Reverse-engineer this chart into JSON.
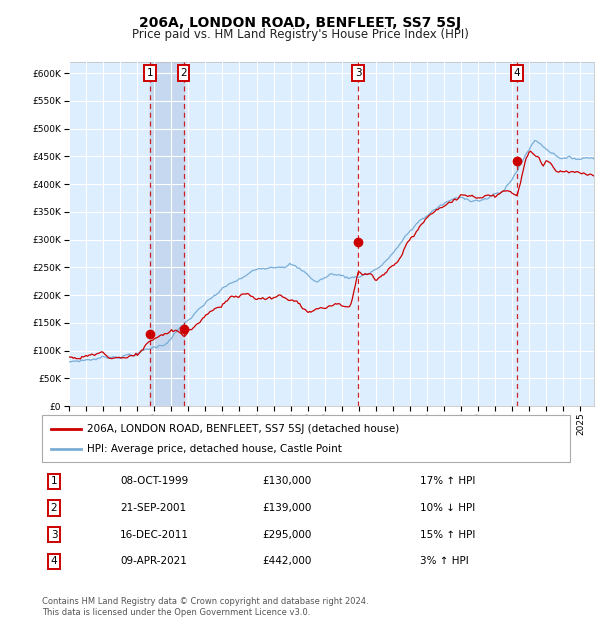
{
  "title": "206A, LONDON ROAD, BENFLEET, SS7 5SJ",
  "subtitle": "Price paid vs. HM Land Registry's House Price Index (HPI)",
  "legend_red": "206A, LONDON ROAD, BENFLEET, SS7 5SJ (detached house)",
  "legend_blue": "HPI: Average price, detached house, Castle Point",
  "footer": "Contains HM Land Registry data © Crown copyright and database right 2024.\nThis data is licensed under the Open Government Licence v3.0.",
  "transactions": [
    {
      "num": 1,
      "date": "08-OCT-1999",
      "price": 130000,
      "hpi_pct": "17%",
      "direction": "↑",
      "year": 1999.77
    },
    {
      "num": 2,
      "date": "21-SEP-2001",
      "price": 139000,
      "hpi_pct": "10%",
      "direction": "↓",
      "year": 2001.72
    },
    {
      "num": 3,
      "date": "16-DEC-2011",
      "price": 295000,
      "hpi_pct": "15%",
      "direction": "↑",
      "year": 2011.96
    },
    {
      "num": 4,
      "date": "09-APR-2021",
      "price": 442000,
      "hpi_pct": "3%",
      "direction": "↑",
      "year": 2021.27
    }
  ],
  "red_color": "#cc0000",
  "blue_color": "#7aaed6",
  "bg_color": "#ddeeff",
  "grid_color": "#ffffff",
  "highlight_bg": "#c5d8f0",
  "ylim": [
    0,
    620000
  ],
  "xlim": [
    1995.0,
    2025.8
  ],
  "yticks": [
    0,
    50000,
    100000,
    150000,
    200000,
    250000,
    300000,
    350000,
    400000,
    450000,
    500000,
    550000,
    600000
  ],
  "xticks": [
    1995,
    1996,
    1997,
    1998,
    1999,
    2000,
    2001,
    2002,
    2003,
    2004,
    2005,
    2006,
    2007,
    2008,
    2009,
    2010,
    2011,
    2012,
    2013,
    2014,
    2015,
    2016,
    2017,
    2018,
    2019,
    2020,
    2021,
    2022,
    2023,
    2024,
    2025
  ]
}
